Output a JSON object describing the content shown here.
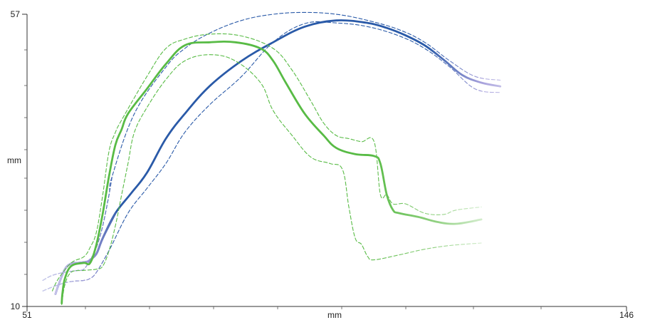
{
  "chart_data": {
    "type": "line",
    "xlabel": "mm",
    "ylabel": "mm",
    "xlim": [
      51,
      146
    ],
    "ylim": [
      10,
      57
    ],
    "x_tick_labels": [
      "51",
      "146"
    ],
    "y_tick_labels": [
      "10",
      "57"
    ],
    "grid": false,
    "colors": {
      "blue": "#2a5aa8",
      "green": "#58bb45",
      "fade_blue": "#c9c4ea",
      "fade_green": "#b7deb0"
    },
    "series": [
      {
        "color": "#2a5aa8",
        "style": "solid",
        "faded_ends": true,
        "x": [
          55.5,
          56,
          57,
          58,
          59,
          60.5,
          61,
          62,
          63,
          65,
          67.5,
          70,
          73,
          76,
          80,
          85,
          90,
          95,
          100,
          105,
          108,
          111,
          114,
          117,
          120,
          123,
          126
        ],
        "y": [
          12.0,
          13.5,
          16.0,
          16.9,
          17.0,
          17.2,
          17.5,
          18.5,
          21.0,
          25.0,
          28.2,
          31.5,
          37.0,
          41.0,
          45.5,
          49.5,
          52.5,
          55.0,
          56.0,
          55.6,
          54.8,
          53.6,
          52.0,
          49.7,
          47.2,
          46.0,
          45.4
        ]
      },
      {
        "color": "#2a5aa8",
        "style": "dashed",
        "faded_ends": true,
        "x": [
          53.5,
          55,
          57,
          59,
          60,
          61,
          62,
          63,
          64,
          64.5,
          68,
          73,
          76,
          80,
          85,
          90,
          95,
          100,
          105,
          110,
          114,
          118,
          122,
          126
        ],
        "y": [
          14.2,
          15.0,
          15.5,
          15.8,
          16.0,
          17.5,
          19.5,
          23.0,
          28.0,
          31.0,
          41.0,
          48.5,
          51.5,
          54.0,
          56.0,
          57.0,
          57.3,
          57.0,
          56.0,
          54.5,
          52.5,
          49.5,
          47.0,
          46.4
        ]
      },
      {
        "color": "#2a5aa8",
        "style": "dashed",
        "faded_ends": true,
        "x": [
          53.5,
          56,
          58,
          60,
          61,
          62,
          64,
          67,
          70,
          73,
          76,
          80,
          85,
          90,
          95,
          100,
          105,
          110,
          114,
          118,
          122,
          126
        ],
        "y": [
          12.5,
          13.5,
          14.0,
          14.2,
          14.5,
          15.5,
          19.0,
          25.0,
          29.0,
          33.0,
          38.0,
          42.5,
          47.0,
          52.5,
          55.5,
          55.6,
          55.0,
          53.5,
          51.5,
          48.5,
          45.0,
          44.4
        ]
      },
      {
        "color": "#58bb45",
        "style": "solid",
        "faded_ends": true,
        "x": [
          56.5,
          56.6,
          57,
          58,
          60,
          61,
          62,
          63,
          64,
          65,
          66,
          67,
          70,
          73,
          76,
          80,
          84,
          88,
          90,
          92,
          95,
          98,
          100,
          103,
          106,
          107,
          108,
          109,
          110,
          113,
          116,
          119,
          123
        ],
        "y": [
          10.5,
          12.0,
          14.5,
          16.5,
          17.0,
          17.0,
          20.0,
          25.0,
          31.0,
          36.0,
          38.5,
          41.0,
          45.0,
          49.0,
          52.0,
          52.5,
          52.5,
          51.5,
          49.5,
          46.0,
          41.0,
          37.5,
          35.5,
          34.5,
          34.2,
          33.0,
          28.0,
          25.5,
          25.0,
          24.4,
          23.6,
          23.3,
          24.0
        ]
      },
      {
        "color": "#58bb45",
        "style": "dashed",
        "faded_ends": true,
        "x": [
          55,
          56,
          58,
          60,
          61,
          62,
          63,
          64,
          65,
          66,
          70,
          73,
          76,
          80,
          85,
          90,
          93,
          96,
          98,
          100,
          102,
          104,
          106,
          107,
          108,
          109,
          111,
          114,
          117,
          119,
          123
        ],
        "y": [
          12.5,
          14.5,
          17.0,
          18.0,
          19.5,
          22.0,
          28.0,
          35.0,
          38.0,
          40.0,
          47.0,
          51.5,
          53.0,
          53.8,
          53.5,
          51.5,
          48.0,
          43.0,
          39.5,
          37.5,
          37.0,
          36.5,
          36.5,
          28.0,
          28.0,
          26.5,
          26.5,
          25.0,
          24.8,
          25.5,
          26.0
        ]
      },
      {
        "color": "#58bb45",
        "style": "dashed",
        "faded_ends": true,
        "x": [
          56.5,
          57,
          58,
          60,
          62,
          63,
          64,
          65,
          66,
          67,
          68,
          70,
          73,
          76,
          80,
          84,
          88,
          90,
          93,
          96,
          99,
          101,
          102,
          103,
          104,
          105,
          106,
          110,
          114,
          118,
          123
        ],
        "y": [
          10.3,
          13.5,
          15.5,
          15.8,
          16.0,
          16.5,
          19.0,
          23.0,
          28.0,
          33.0,
          38.0,
          42.0,
          46.5,
          49.5,
          50.5,
          49.5,
          46.0,
          41.5,
          37.5,
          34.0,
          33.0,
          32.0,
          26.0,
          21.0,
          20.0,
          18.0,
          17.5,
          18.3,
          19.2,
          19.8,
          20.2
        ]
      }
    ]
  }
}
